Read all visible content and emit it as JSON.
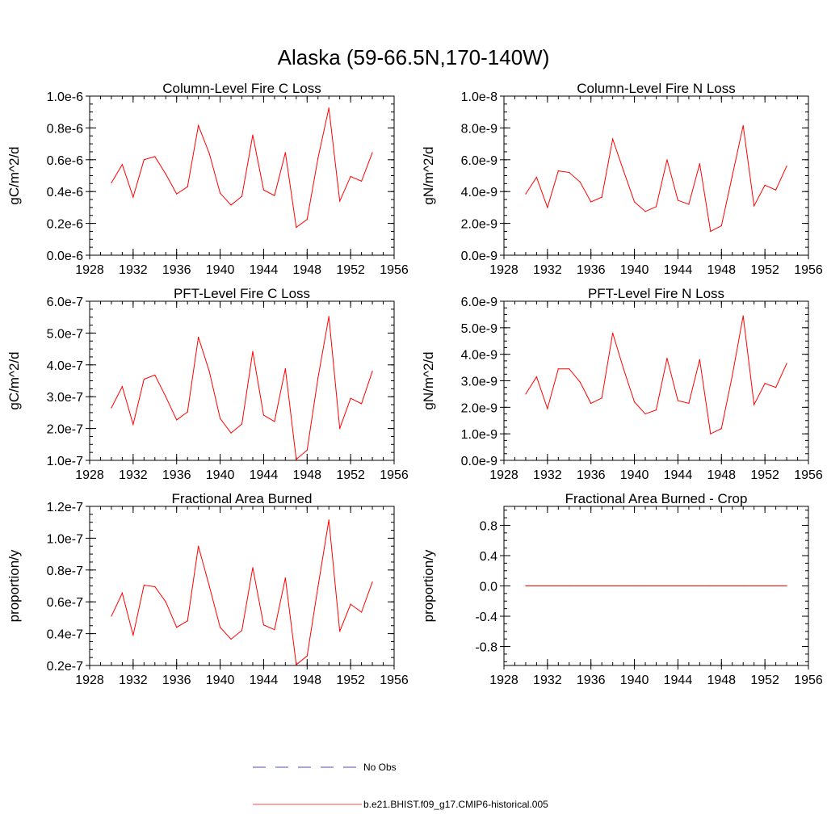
{
  "figure": {
    "title": "Alaska (59-66.5N,170-140W)"
  },
  "colors": {
    "model": "#ff0000",
    "obs": "#0000aa",
    "axis": "#000000"
  },
  "legend": {
    "items": [
      {
        "label": "No Obs",
        "style": "dashed",
        "color": "#0000aa"
      },
      {
        "label": "b.e21.BHIST.f09_g17.CMIP6-historical.005",
        "style": "solid",
        "color": "#ff0000"
      }
    ]
  },
  "chart_data": [
    {
      "type": "line",
      "title": "Column-Level Fire C Loss",
      "xlabel": "",
      "ylabel": "gC/m^2/d",
      "xlim": [
        1928,
        1956
      ],
      "xticks": [
        1928,
        1932,
        1936,
        1940,
        1944,
        1948,
        1952,
        1956
      ],
      "ylim": [
        0,
        1e-06
      ],
      "yticks": [
        0,
        2e-07,
        4e-07,
        6e-07,
        8e-07,
        1e-06
      ],
      "yticklabels": [
        "0.0e-6",
        "0.2e-6",
        "0.4e-6",
        "0.6e-6",
        "0.8e-6",
        "1.0e-6"
      ],
      "yminorstep": 5e-08,
      "series": [
        {
          "name": "b.e21.BHIST.f09_g17.CMIP6-historical.005",
          "x": [
            1930,
            1931,
            1932,
            1933,
            1934,
            1935,
            1936,
            1937,
            1938,
            1939,
            1940,
            1941,
            1942,
            1943,
            1944,
            1945,
            1946,
            1947,
            1948,
            1949,
            1950,
            1951,
            1952,
            1953,
            1954
          ],
          "values": [
            4.55e-07,
            5.7e-07,
            3.65e-07,
            6e-07,
            6.2e-07,
            5.1e-07,
            3.85e-07,
            4.3e-07,
            8.15e-07,
            6.4e-07,
            3.9e-07,
            3.15e-07,
            3.7e-07,
            7.55e-07,
            4.1e-07,
            3.75e-07,
            6.45e-07,
            1.75e-07,
            2.25e-07,
            6.1e-07,
            9.25e-07,
            3.4e-07,
            4.95e-07,
            4.65e-07,
            6.45e-07
          ]
        }
      ]
    },
    {
      "type": "line",
      "title": "Column-Level Fire N Loss",
      "xlabel": "",
      "ylabel": "gN/m^2/d",
      "xlim": [
        1928,
        1956
      ],
      "xticks": [
        1928,
        1932,
        1936,
        1940,
        1944,
        1948,
        1952,
        1956
      ],
      "ylim": [
        0,
        1e-08
      ],
      "yticks": [
        0,
        2e-09,
        4e-09,
        6e-09,
        8e-09,
        1e-08
      ],
      "yticklabels": [
        "0.0e-9",
        "2.0e-9",
        "4.0e-9",
        "6.0e-9",
        "8.0e-9",
        "1.0e-8"
      ],
      "yminorstep": 5e-10,
      "series": [
        {
          "name": "b.e21.BHIST.f09_g17.CMIP6-historical.005",
          "x": [
            1930,
            1931,
            1932,
            1933,
            1934,
            1935,
            1936,
            1937,
            1938,
            1939,
            1940,
            1941,
            1942,
            1943,
            1944,
            1945,
            1946,
            1947,
            1948,
            1949,
            1950,
            1951,
            1952,
            1953,
            1954
          ],
          "values": [
            3.85e-09,
            4.9e-09,
            3e-09,
            5.3e-09,
            5.2e-09,
            4.6e-09,
            3.35e-09,
            3.65e-09,
            7.3e-09,
            5.3e-09,
            3.35e-09,
            2.75e-09,
            3.05e-09,
            6e-09,
            3.45e-09,
            3.2e-09,
            5.75e-09,
            1.5e-09,
            1.85e-09,
            5e-09,
            8.15e-09,
            3.1e-09,
            4.4e-09,
            4.1e-09,
            5.6e-09
          ]
        }
      ]
    },
    {
      "type": "line",
      "title": "PFT-Level Fire C Loss",
      "xlabel": "",
      "ylabel": "gC/m^2/d",
      "xlim": [
        1928,
        1956
      ],
      "xticks": [
        1928,
        1932,
        1936,
        1940,
        1944,
        1948,
        1952,
        1956
      ],
      "ylim": [
        1e-07,
        6e-07
      ],
      "yticks": [
        1e-07,
        2e-07,
        3e-07,
        4e-07,
        5e-07,
        6e-07
      ],
      "yticklabels": [
        "1.0e-7",
        "2.0e-7",
        "3.0e-7",
        "4.0e-7",
        "5.0e-7",
        "6.0e-7"
      ],
      "yminorstep": 2.5e-08,
      "series": [
        {
          "name": "b.e21.BHIST.f09_g17.CMIP6-historical.005",
          "x": [
            1930,
            1931,
            1932,
            1933,
            1934,
            1935,
            1936,
            1937,
            1938,
            1939,
            1940,
            1941,
            1942,
            1943,
            1944,
            1945,
            1946,
            1947,
            1948,
            1949,
            1950,
            1951,
            1952,
            1953,
            1954
          ],
          "values": [
            2.65e-07,
            3.32e-07,
            2.13e-07,
            3.55e-07,
            3.68e-07,
            3e-07,
            2.27e-07,
            2.52e-07,
            4.87e-07,
            3.8e-07,
            2.32e-07,
            1.86e-07,
            2.14e-07,
            4.42e-07,
            2.42e-07,
            2.22e-07,
            3.88e-07,
            1.03e-07,
            1.32e-07,
            3.59e-07,
            5.52e-07,
            2e-07,
            2.95e-07,
            2.78e-07,
            3.8e-07
          ]
        }
      ]
    },
    {
      "type": "line",
      "title": "PFT-Level Fire N Loss",
      "xlabel": "",
      "ylabel": "gN/m^2/d",
      "xlim": [
        1928,
        1956
      ],
      "xticks": [
        1928,
        1932,
        1936,
        1940,
        1944,
        1948,
        1952,
        1956
      ],
      "ylim": [
        0,
        6e-09
      ],
      "yticks": [
        0,
        1e-09,
        2e-09,
        3e-09,
        4e-09,
        5e-09,
        6e-09
      ],
      "yticklabels": [
        "0.0e-9",
        "1.0e-9",
        "2.0e-9",
        "3.0e-9",
        "4.0e-9",
        "5.0e-9",
        "6.0e-9"
      ],
      "yminorstep": 2.5e-10,
      "series": [
        {
          "name": "b.e21.BHIST.f09_g17.CMIP6-historical.005",
          "x": [
            1930,
            1931,
            1932,
            1933,
            1934,
            1935,
            1936,
            1937,
            1938,
            1939,
            1940,
            1941,
            1942,
            1943,
            1944,
            1945,
            1946,
            1947,
            1948,
            1949,
            1950,
            1951,
            1952,
            1953,
            1954
          ],
          "values": [
            2.5e-09,
            3.15e-09,
            1.95e-09,
            3.45e-09,
            3.45e-09,
            2.95e-09,
            2.15e-09,
            2.35e-09,
            4.8e-09,
            3.45e-09,
            2.2e-09,
            1.75e-09,
            1.9e-09,
            3.85e-09,
            2.25e-09,
            2.15e-09,
            3.8e-09,
            1e-09,
            1.2e-09,
            3.2e-09,
            5.45e-09,
            2.1e-09,
            2.9e-09,
            2.75e-09,
            3.65e-09
          ]
        }
      ]
    },
    {
      "type": "line",
      "title": "Fractional Area Burned",
      "xlabel": "",
      "ylabel": "proportion/y",
      "xlim": [
        1928,
        1956
      ],
      "xticks": [
        1928,
        1932,
        1936,
        1940,
        1944,
        1948,
        1952,
        1956
      ],
      "ylim": [
        2e-08,
        1.2e-07
      ],
      "yticks": [
        2e-08,
        4e-08,
        6e-08,
        8e-08,
        1e-07,
        1.2e-07
      ],
      "yticklabels": [
        "0.2e-7",
        "0.4e-7",
        "0.6e-7",
        "0.8e-7",
        "1.0e-7",
        "1.2e-7"
      ],
      "yminorstep": 5e-09,
      "series": [
        {
          "name": "b.e21.BHIST.f09_g17.CMIP6-historical.005",
          "x": [
            1930,
            1931,
            1932,
            1933,
            1934,
            1935,
            1936,
            1937,
            1938,
            1939,
            1940,
            1941,
            1942,
            1943,
            1944,
            1945,
            1946,
            1947,
            1948,
            1949,
            1950,
            1951,
            1952,
            1953,
            1954
          ],
          "values": [
            5.1e-08,
            6.55e-08,
            3.9e-08,
            7.05e-08,
            6.95e-08,
            6e-08,
            4.4e-08,
            4.8e-08,
            9.5e-08,
            7e-08,
            4.4e-08,
            3.65e-08,
            4.2e-08,
            8.15e-08,
            4.55e-08,
            4.25e-08,
            7.5e-08,
            2.05e-08,
            2.6e-08,
            6.95e-08,
            1.115e-07,
            4.15e-08,
            5.85e-08,
            5.35e-08,
            7.25e-08
          ]
        }
      ]
    },
    {
      "type": "line",
      "title": "Fractional Area Burned - Crop",
      "xlabel": "",
      "ylabel": "proportion/y",
      "xlim": [
        1928,
        1956
      ],
      "xticks": [
        1928,
        1932,
        1936,
        1940,
        1944,
        1948,
        1952,
        1956
      ],
      "ylim": [
        -1.05,
        1.05
      ],
      "yticks": [
        -0.8,
        -0.4,
        0.0,
        0.4,
        0.8
      ],
      "yticklabels": [
        "-0.8",
        "-0.4",
        "0.0",
        "0.4",
        "0.8"
      ],
      "yminorstep": 0.1,
      "series": [
        {
          "name": "b.e21.BHIST.f09_g17.CMIP6-historical.005",
          "x": [
            1930,
            1931,
            1932,
            1933,
            1934,
            1935,
            1936,
            1937,
            1938,
            1939,
            1940,
            1941,
            1942,
            1943,
            1944,
            1945,
            1946,
            1947,
            1948,
            1949,
            1950,
            1951,
            1952,
            1953,
            1954
          ],
          "values": [
            0,
            0,
            0,
            0,
            0,
            0,
            0,
            0,
            0,
            0,
            0,
            0,
            0,
            0,
            0,
            0,
            0,
            0,
            0,
            0,
            0,
            0,
            0,
            0,
            0
          ]
        }
      ]
    }
  ]
}
